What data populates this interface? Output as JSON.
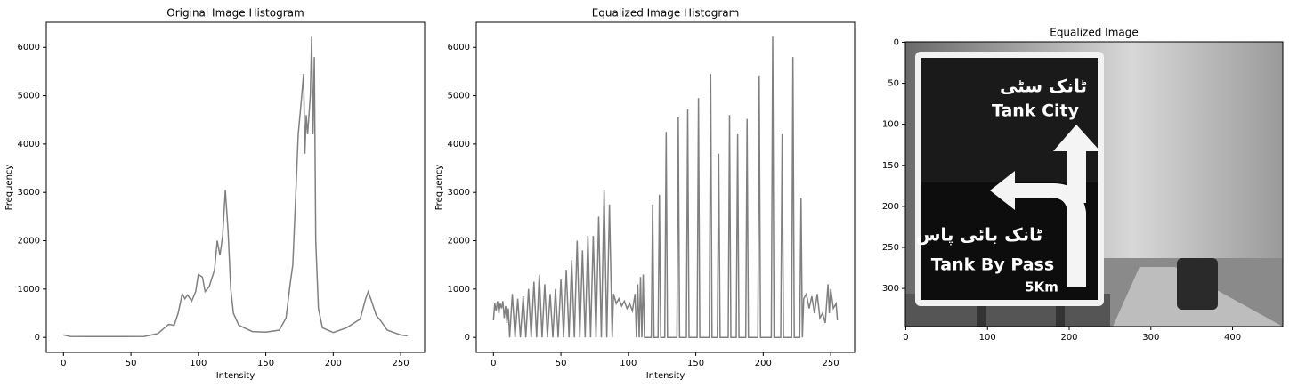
{
  "chart_data": [
    {
      "type": "line",
      "title": "Original Image Histogram",
      "xlabel": "Intensity",
      "ylabel": "Frequency",
      "color": "#808080",
      "x": [
        0,
        5,
        20,
        40,
        60,
        70,
        75,
        78,
        82,
        85,
        88,
        90,
        92,
        95,
        98,
        100,
        103,
        105,
        108,
        112,
        114,
        116,
        118,
        120,
        122,
        124,
        126,
        130,
        140,
        150,
        160,
        165,
        168,
        170,
        172,
        174,
        176,
        178,
        179,
        180,
        181,
        183,
        184,
        185,
        186,
        187,
        189,
        192,
        200,
        210,
        220,
        224,
        226,
        229,
        232,
        235,
        240,
        250,
        255
      ],
      "values": [
        50,
        20,
        15,
        15,
        20,
        80,
        200,
        270,
        250,
        500,
        900,
        800,
        880,
        750,
        950,
        1300,
        1250,
        950,
        1050,
        1400,
        2000,
        1700,
        2100,
        3050,
        2200,
        1000,
        500,
        250,
        120,
        110,
        150,
        400,
        1100,
        1500,
        2800,
        4200,
        4800,
        5450,
        3800,
        4600,
        4200,
        5000,
        6220,
        4200,
        5800,
        2000,
        600,
        200,
        100,
        200,
        380,
        800,
        950,
        700,
        450,
        350,
        150,
        50,
        30
      ],
      "xlim": [
        -12.75,
        267.75
      ],
      "ylim": [
        -310,
        6520
      ],
      "xticks": [
        0,
        50,
        100,
        150,
        200,
        250
      ],
      "yticks": [
        0,
        1000,
        2000,
        3000,
        4000,
        5000,
        6000
      ]
    },
    {
      "type": "line",
      "title": "Equalized Image Histogram",
      "xlabel": "Intensity",
      "ylabel": "Frequency",
      "color": "#808080",
      "x": [
        0,
        1,
        2,
        3,
        4,
        5,
        6,
        7,
        8,
        9,
        10,
        11,
        12,
        14,
        16,
        18,
        20,
        22,
        24,
        26,
        28,
        30,
        32,
        34,
        36,
        38,
        40,
        42,
        44,
        46,
        48,
        50,
        52,
        54,
        56,
        58,
        60,
        62,
        64,
        66,
        68,
        70,
        72,
        74,
        76,
        78,
        80,
        82,
        84,
        86,
        88,
        89,
        91,
        93,
        95,
        97,
        99,
        101,
        103,
        105,
        106,
        107,
        108,
        109,
        110,
        111,
        112,
        117,
        118,
        119,
        122,
        123,
        124,
        127,
        128,
        129,
        136,
        137,
        138,
        143,
        144,
        145,
        151,
        152,
        153,
        160,
        161,
        162,
        166,
        167,
        168,
        174,
        175,
        176,
        180,
        181,
        182,
        187,
        188,
        189,
        196,
        197,
        198,
        206,
        207,
        208,
        213,
        214,
        215,
        221,
        222,
        223,
        227,
        228,
        229,
        230,
        232,
        234,
        236,
        238,
        240,
        242,
        244,
        246,
        248,
        249,
        250,
        252,
        254,
        255
      ],
      "values": [
        350,
        700,
        550,
        750,
        500,
        700,
        600,
        750,
        400,
        650,
        300,
        600,
        0,
        900,
        0,
        800,
        0,
        850,
        0,
        1000,
        0,
        1150,
        0,
        1300,
        0,
        1100,
        0,
        900,
        0,
        1000,
        0,
        1200,
        0,
        1400,
        0,
        1600,
        0,
        2000,
        0,
        1800,
        0,
        2100,
        0,
        2100,
        0,
        2500,
        0,
        3050,
        0,
        2750,
        0,
        900,
        700,
        800,
        650,
        750,
        600,
        700,
        550,
        900,
        0,
        1100,
        0,
        1250,
        0,
        1300,
        0,
        0,
        2750,
        0,
        0,
        2950,
        0,
        0,
        4250,
        0,
        0,
        4550,
        0,
        0,
        4720,
        0,
        0,
        4950,
        0,
        0,
        5450,
        0,
        0,
        3800,
        0,
        0,
        4600,
        0,
        0,
        4200,
        0,
        0,
        4520,
        0,
        0,
        5420,
        0,
        0,
        6220,
        0,
        0,
        4200,
        0,
        0,
        5800,
        0,
        0,
        2880,
        0,
        800,
        900,
        600,
        850,
        500,
        900,
        400,
        500,
        300,
        1100,
        500,
        1000,
        600,
        700,
        350
      ],
      "xlim": [
        -12.75,
        267.75
      ],
      "ylim": [
        -310,
        6520
      ],
      "xticks": [
        0,
        50,
        100,
        150,
        200,
        250
      ],
      "yticks": [
        0,
        1000,
        2000,
        3000,
        4000,
        5000,
        6000
      ]
    },
    {
      "type": "image",
      "title": "Equalized Image",
      "texts": [
        "ٹانک سٹی",
        "Tank City",
        "ٹانک بائی پاس",
        "Tank By Pass",
        "5Km"
      ],
      "xlim": [
        -0.5,
        461.5
      ],
      "ylim": [
        346.5,
        -0.5
      ],
      "xticks": [
        0,
        100,
        200,
        300,
        400
      ],
      "yticks": [
        0,
        50,
        100,
        150,
        200,
        250,
        300
      ]
    }
  ]
}
